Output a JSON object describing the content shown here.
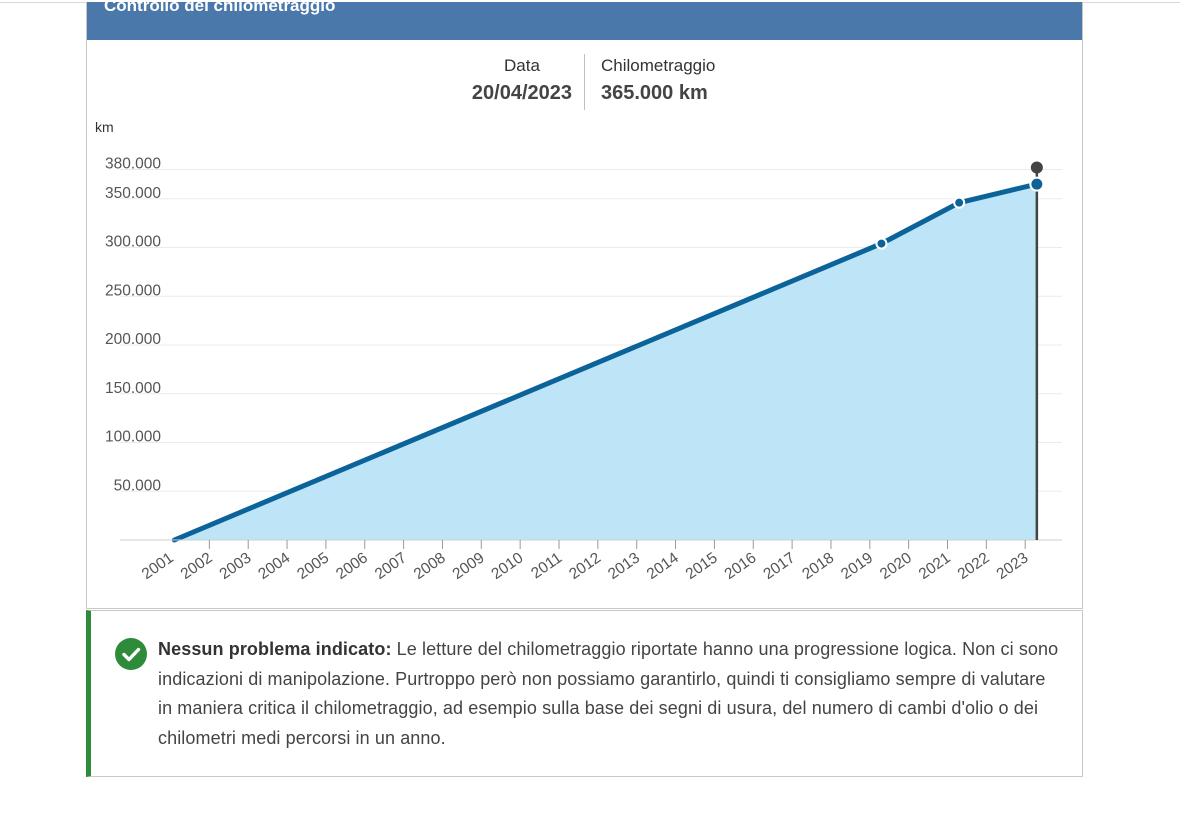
{
  "panel": {
    "title": "Controllo del chilometraggio"
  },
  "summary": {
    "date_label": "Data",
    "date_value": "20/04/2023",
    "km_label": "Chilometraggio",
    "km_value": "365.000 km"
  },
  "chart_data": {
    "type": "area",
    "title": "",
    "ylabel": "km",
    "xlabel": "",
    "ylim": [
      0,
      380000
    ],
    "y_ticks": [
      50000,
      100000,
      150000,
      200000,
      250000,
      300000,
      350000,
      380000
    ],
    "y_tick_labels": [
      "50.000",
      "100.000",
      "150.000",
      "200.000",
      "250.000",
      "300.000",
      "350.000",
      "380.000"
    ],
    "x_tick_labels": [
      "2001",
      "2002",
      "2003",
      "2004",
      "2005",
      "2006",
      "2007",
      "2008",
      "2009",
      "2010",
      "2011",
      "2012",
      "2013",
      "2014",
      "2015",
      "2016",
      "2017",
      "2018",
      "2019",
      "2020",
      "2021",
      "2022",
      "2023"
    ],
    "series": [
      {
        "name": "Chilometraggio",
        "points": [
          {
            "year": 2001.1,
            "km": 0
          },
          {
            "year": 2019.3,
            "km": 304000
          },
          {
            "year": 2021.3,
            "km": 346000
          },
          {
            "year": 2023.3,
            "km": 365000
          }
        ]
      }
    ],
    "current_marker": {
      "year": 2023.3,
      "km": 380000
    },
    "colors": {
      "line": "#0b6399",
      "fill": "#bde5f7",
      "grid": "#ebebeb",
      "marker_top": "#444444"
    }
  },
  "notice": {
    "bold_text": "Nessun problema indicato:",
    "text": " Le letture del chilometraggio riportate hanno una progressione logica. Non ci sono indicazioni di manipolazione. Purtroppo però non possiamo garantirlo, quindi ti consigliamo sempre di valutare in maniera critica il chilometraggio, ad esempio sulla base dei segni di usura, del numero di cambi d'olio o dei chilometri medi percorsi in un anno.",
    "icon": "check-circle-icon",
    "accent": "#2e8b3a"
  }
}
